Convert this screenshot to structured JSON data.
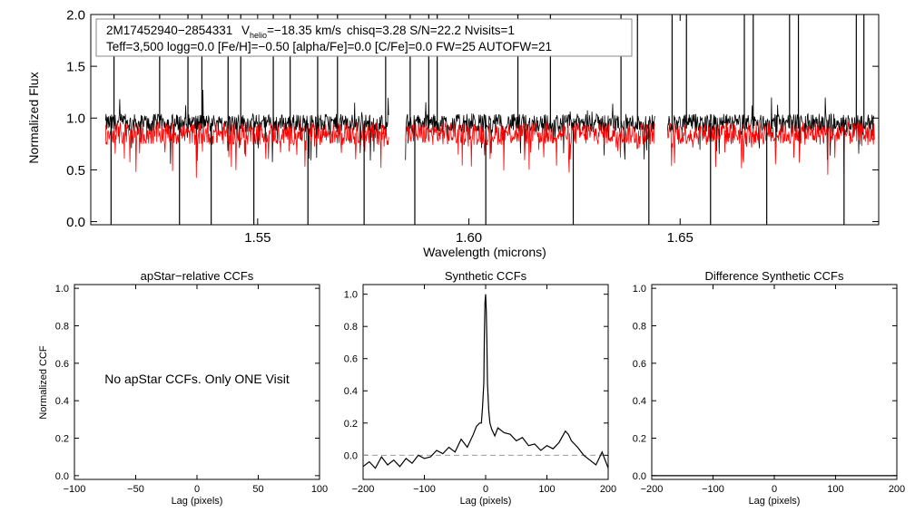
{
  "chart_data": [
    {
      "type": "line",
      "xlabel": "Wavelength (microns)",
      "ylabel": "Normalized Flux",
      "xlim": [
        1.5105,
        1.697
      ],
      "ylim": [
        -0.03,
        2.0
      ],
      "x_ticks": [
        1.55,
        1.6,
        1.65
      ],
      "x_tick_labels": [
        "1.55",
        "1.60",
        "1.65"
      ],
      "y_ticks": [
        0.0,
        0.5,
        1.0,
        1.5,
        2.0
      ],
      "y_tick_labels": [
        "0.0",
        "0.5",
        "1.0",
        "1.5",
        "2.0"
      ],
      "chip_ranges": [
        [
          1.514,
          1.581
        ],
        [
          1.585,
          1.644
        ],
        [
          1.647,
          1.696
        ]
      ],
      "series": [
        {
          "name": "observed spectrum",
          "color": "#000000",
          "level": 0.95,
          "noise": 0.09
        },
        {
          "name": "synthetic fit",
          "color": "#ff0000",
          "level": 0.85,
          "noise": 0.11
        }
      ],
      "legend_box": {
        "star_id": "2M17452940−2854331",
        "v_label": "V",
        "v_sub": "helio",
        "v_value": "=−18.35 km/s",
        "rest_line1": "chisq=3.28  S/N=22.2  Nvisits=1",
        "line2": "Teff=3,500 logg=0.0 [Fe/H]=−0.50 [alpha/Fe]=0.0 [C/Fe]=0.0 FW=25 AUTOFW=21"
      }
    },
    {
      "type": "line",
      "title": "apStar−relative CCFs",
      "xlabel": "Lag (pixels)",
      "ylabel": "Normalized CCF",
      "xlim": [
        -100,
        100
      ],
      "ylim": [
        -0.02,
        1.02
      ],
      "x_ticks": [
        -100,
        -50,
        0,
        50,
        100
      ],
      "x_tick_labels": [
        "−100",
        "−50",
        "0",
        "50",
        "100"
      ],
      "y_ticks": [
        0.0,
        0.2,
        0.4,
        0.6,
        0.8,
        1.0
      ],
      "y_tick_labels": [
        "0.0",
        "0.2",
        "0.4",
        "0.6",
        "0.8",
        "1.0"
      ],
      "annotation": "No apStar CCFs.  Only ONE Visit",
      "series": []
    },
    {
      "type": "line",
      "title": "Synthetic CCFs",
      "xlabel": "Lag (pixels)",
      "xlim": [
        -200,
        200
      ],
      "ylim": [
        -0.15,
        1.06
      ],
      "x_ticks": [
        -200,
        -100,
        0,
        100,
        200
      ],
      "x_tick_labels": [
        "−200",
        "−100",
        "0",
        "100",
        "200"
      ],
      "y_ticks": [
        0.0,
        0.2,
        0.4,
        0.6,
        0.8,
        1.0
      ],
      "y_tick_labels": [
        "0.0",
        "0.2",
        "0.4",
        "0.6",
        "0.8",
        "1.0"
      ],
      "zero_line": {
        "y": 0.0,
        "style": "dashed",
        "color": "#999999"
      },
      "series": [
        {
          "name": "synthetic CCF",
          "color": "#000000",
          "x": [
            -200,
            -190,
            -180,
            -170,
            -160,
            -150,
            -140,
            -130,
            -120,
            -110,
            -100,
            -90,
            -80,
            -70,
            -60,
            -50,
            -40,
            -30,
            -20,
            -15,
            -10,
            -7,
            -5,
            -3,
            -2,
            -1,
            0,
            1,
            2,
            3,
            5,
            7,
            10,
            15,
            20,
            30,
            40,
            50,
            60,
            70,
            80,
            90,
            100,
            110,
            120,
            130,
            135,
            140,
            150,
            160,
            170,
            180,
            190,
            200
          ],
          "y": [
            -0.07,
            -0.04,
            -0.08,
            -0.01,
            -0.06,
            -0.03,
            -0.07,
            -0.02,
            -0.05,
            0.0,
            -0.02,
            -0.01,
            0.03,
            0.01,
            0.05,
            0.02,
            0.1,
            0.05,
            0.13,
            0.18,
            0.2,
            0.2,
            0.3,
            0.45,
            0.75,
            0.95,
            1.0,
            0.9,
            0.7,
            0.45,
            0.28,
            0.2,
            0.16,
            0.12,
            0.17,
            0.14,
            0.13,
            0.09,
            0.11,
            0.06,
            0.07,
            0.03,
            0.06,
            0.04,
            0.08,
            0.15,
            0.13,
            0.09,
            0.05,
            0.0,
            -0.03,
            -0.06,
            0.02,
            -0.08
          ]
        }
      ]
    },
    {
      "type": "line",
      "title": "Difference Synthetic CCFs",
      "xlabel": "Lag (pixels)",
      "xlim": [
        -200,
        200
      ],
      "ylim": [
        -0.02,
        1.02
      ],
      "x_ticks": [
        -200,
        -100,
        0,
        100,
        200
      ],
      "x_tick_labels": [
        "−200",
        "−100",
        "0",
        "100",
        "200"
      ],
      "y_ticks": [
        0.0,
        0.2,
        0.4,
        0.6,
        0.8,
        1.0
      ],
      "y_tick_labels": [
        "0.0",
        "0.2",
        "0.4",
        "0.6",
        "0.8",
        "1.0"
      ],
      "series": [
        {
          "name": "difference CCF",
          "color": "#000000",
          "x": [
            -200,
            200
          ],
          "y": [
            0.0,
            0.0
          ]
        }
      ]
    }
  ]
}
